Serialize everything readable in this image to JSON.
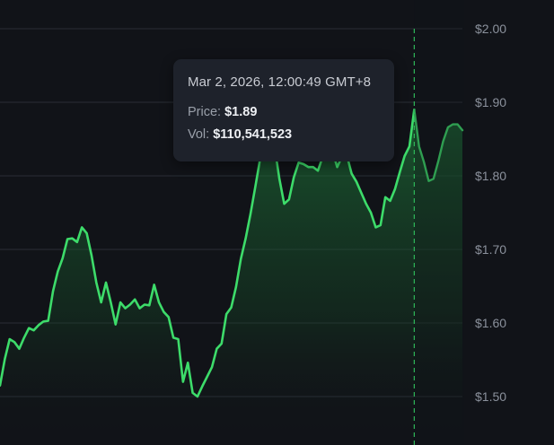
{
  "chart_data": {
    "type": "area",
    "title": "",
    "xlabel": "",
    "ylabel": "",
    "ylim": [
      1.47,
      2.02
    ],
    "y_ticks": [
      "$2.00",
      "$1.90",
      "$1.80",
      "$1.70",
      "$1.60",
      "$1.50"
    ],
    "y_tick_values": [
      2.0,
      1.9,
      1.8,
      1.7,
      1.6,
      1.5
    ],
    "grid": true,
    "legend": "none",
    "colors": {
      "line": "#3ddc6a",
      "fill": "#1c6b34",
      "crosshair": "#2fb85a",
      "background": "#111318",
      "grid": "#2a2e36"
    },
    "series": [
      {
        "values": [
          1.515,
          1.551,
          1.578,
          1.574,
          1.565,
          1.58,
          1.593,
          1.59,
          1.597,
          1.602,
          1.603,
          1.643,
          1.67,
          1.688,
          1.714,
          1.715,
          1.71,
          1.73,
          1.722,
          1.692,
          1.655,
          1.628,
          1.655,
          1.628,
          1.598,
          1.628,
          1.62,
          1.625,
          1.632,
          1.62,
          1.625,
          1.624,
          1.652,
          1.628,
          1.615,
          1.608,
          1.58,
          1.578,
          1.52,
          1.546,
          1.505,
          1.5,
          1.514,
          1.527,
          1.54,
          1.565,
          1.572,
          1.612,
          1.621,
          1.649,
          1.687,
          1.715,
          1.748,
          1.785,
          1.823,
          1.851,
          1.877,
          1.84,
          1.796,
          1.762,
          1.768,
          1.798,
          1.818,
          1.816,
          1.812,
          1.812,
          1.807,
          1.826,
          1.837,
          1.834,
          1.812,
          1.826,
          1.828,
          1.803,
          1.792,
          1.777,
          1.762,
          1.75,
          1.73,
          1.733,
          1.771,
          1.766,
          1.782,
          1.805,
          1.827,
          1.84,
          1.89,
          1.84,
          1.819,
          1.793,
          1.796,
          1.82,
          1.847,
          1.866,
          1.87,
          1.87,
          1.862
        ]
      }
    ],
    "hover_index": 86
  },
  "tooltip": {
    "date": "Mar 2, 2026, 12:00:49 GMT+8",
    "price_label": "Price:",
    "price_value": "$1.89",
    "vol_label": "Vol:",
    "vol_value": "$110,541,523"
  }
}
